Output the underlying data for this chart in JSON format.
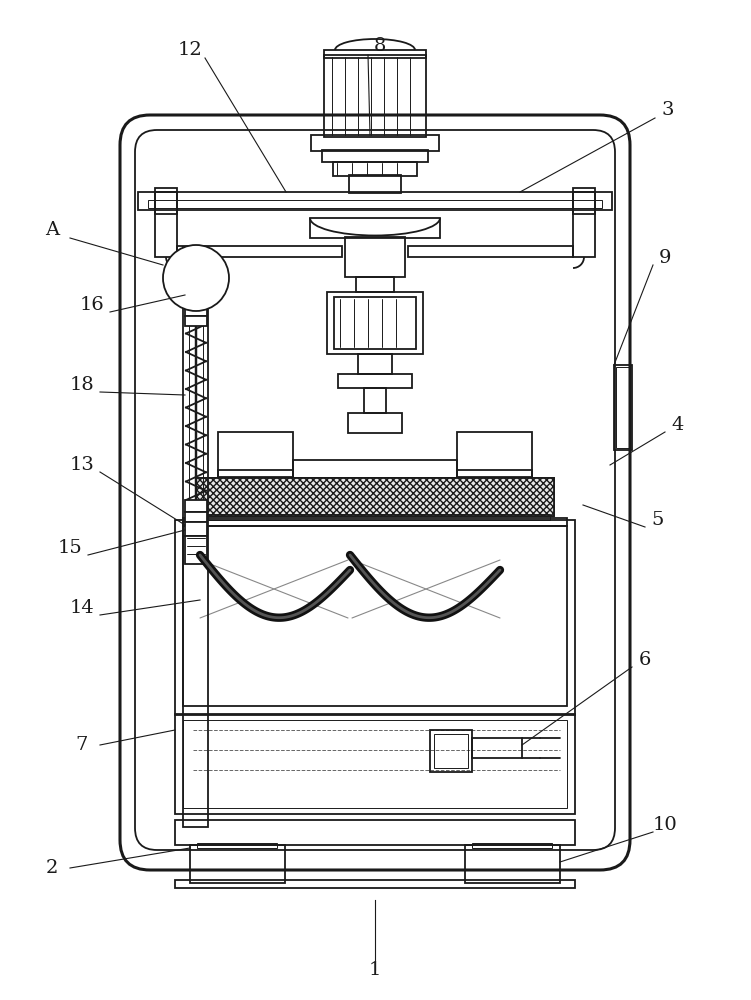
{
  "bg_color": "#ffffff",
  "line_color": "#1a1a1a",
  "lw": 1.3,
  "tlw": 0.7,
  "thk": 2.2,
  "fs": 14
}
